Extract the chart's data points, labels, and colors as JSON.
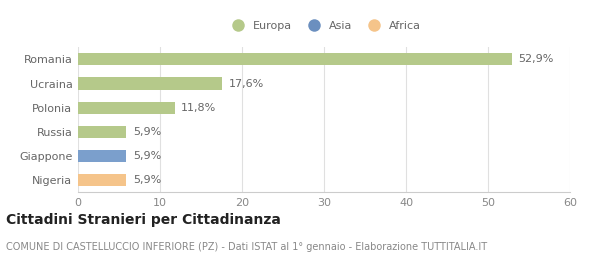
{
  "categories": [
    "Nigeria",
    "Giappone",
    "Russia",
    "Polonia",
    "Ucraina",
    "Romania"
  ],
  "values": [
    5.9,
    5.9,
    5.9,
    11.8,
    17.6,
    52.9
  ],
  "colors": [
    "#f5c48a",
    "#7b9fcc",
    "#b5c98a",
    "#b5c98a",
    "#b5c98a",
    "#b5c98a"
  ],
  "labels": [
    "5,9%",
    "5,9%",
    "5,9%",
    "11,8%",
    "17,6%",
    "52,9%"
  ],
  "legend_labels": [
    "Europa",
    "Asia",
    "Africa"
  ],
  "legend_colors": [
    "#b5c98a",
    "#6b8fbf",
    "#f5c48a"
  ],
  "title": "Cittadini Stranieri per Cittadinanza",
  "subtitle": "COMUNE DI CASTELLUCCIO INFERIORE (PZ) - Dati ISTAT al 1° gennaio - Elaborazione TUTTITALIA.IT",
  "xlim": [
    0,
    60
  ],
  "xticks": [
    0,
    10,
    20,
    30,
    40,
    50,
    60
  ],
  "bg_color": "#ffffff",
  "plot_bg_color": "#ffffff",
  "title_fontsize": 10,
  "subtitle_fontsize": 7,
  "label_fontsize": 8,
  "tick_fontsize": 8,
  "bar_height": 0.5
}
